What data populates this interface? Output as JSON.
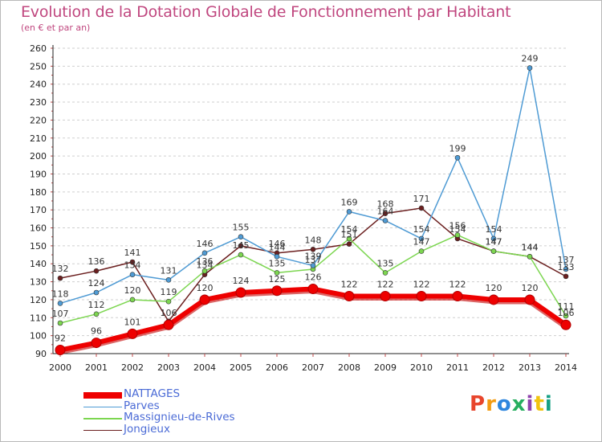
{
  "title": "Evolution de la Dotation Globale de Fonctionnement par Habitant",
  "subtitle": "(en € et par an)",
  "logo": {
    "text": "Proxiti",
    "colors": [
      "#e8452c",
      "#f39c12",
      "#2e86de",
      "#27ae60",
      "#8e44ad",
      "#f1c40f",
      "#16a085"
    ]
  },
  "chart_data": {
    "type": "line",
    "title": "Evolution de la Dotation Globale de Fonctionnement par Habitant",
    "subtitle": "(en € et par an)",
    "x": [
      "2000",
      "2001",
      "2002",
      "2003",
      "2004",
      "2005",
      "2006",
      "2007",
      "2008",
      "2009",
      "2010",
      "2011",
      "2012",
      "2013",
      "2014"
    ],
    "ylim": [
      90,
      260
    ],
    "ystep": 10,
    "grid": "horizontal dashed",
    "legend": "bottom-left",
    "series": [
      {
        "name": "Jongieux",
        "color": "#6b1f1f",
        "values": [
          132,
          136,
          141,
          108,
          134,
          150,
          146,
          148,
          151,
          168,
          171,
          154,
          147,
          144,
          133
        ],
        "labels": [
          "132",
          "136",
          "141",
          "",
          "134",
          "",
          "146",
          "148",
          "151",
          "168",
          "171",
          "154",
          "147",
          "144",
          "133"
        ]
      },
      {
        "name": "Massignieu-de-Rives",
        "color": "#7cd650",
        "values": [
          107,
          112,
          120,
          119,
          136,
          145,
          135,
          137,
          154,
          135,
          147,
          156,
          147,
          144,
          111
        ],
        "labels": [
          "107",
          "112",
          "120",
          "119",
          "136",
          "145",
          "135",
          "137",
          "154",
          "135",
          "147",
          "156",
          "147",
          "144",
          "111"
        ]
      },
      {
        "name": "Parves",
        "color": "#4f9bd4",
        "values": [
          118,
          124,
          134,
          131,
          146,
          155,
          144,
          139,
          169,
          164,
          154,
          199,
          154,
          249,
          137
        ],
        "labels": [
          "118",
          "124",
          "134",
          "131",
          "146",
          "155",
          "144",
          "139",
          "169",
          "164",
          "154",
          "199",
          "154",
          "249",
          "137"
        ]
      },
      {
        "name": "NATTAGES",
        "color": "#ee0000",
        "values": [
          92,
          96,
          101,
          106,
          120,
          124,
          125,
          126,
          122,
          122,
          122,
          122,
          120,
          120,
          106
        ],
        "labels": [
          "92",
          "96",
          "101",
          "106",
          "120",
          "124",
          "125",
          "126",
          "122",
          "122",
          "122",
          "122",
          "120",
          "120",
          "106"
        ]
      }
    ]
  },
  "legend_items": [
    {
      "name": "NATTAGES",
      "color": "#ee0000",
      "thick": 8
    },
    {
      "name": "Parves",
      "color": "#4f9bd4",
      "thick": 1.5
    },
    {
      "name": "Massignieu-de-Rives",
      "color": "#7cd650",
      "thick": 1.5
    },
    {
      "name": "Jongieux",
      "color": "#6b1f1f",
      "thick": 1.5
    }
  ]
}
